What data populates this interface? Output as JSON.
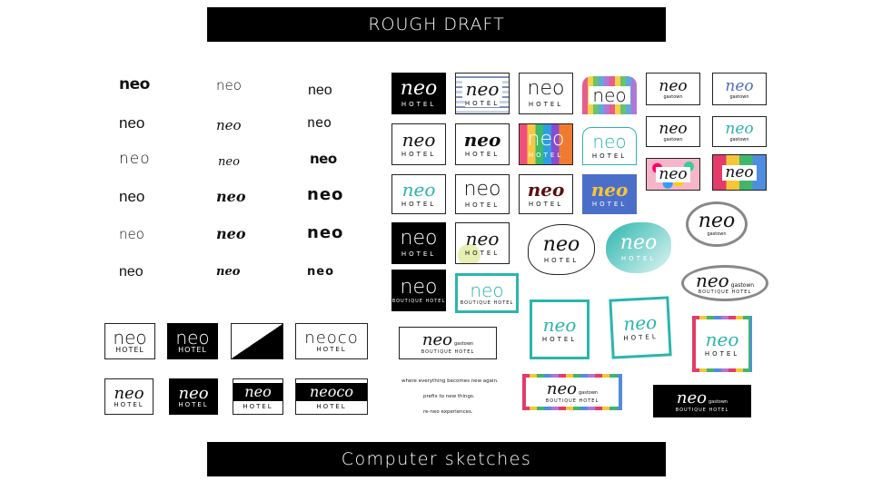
{
  "banners": {
    "top": "ROUGH DRAFT",
    "bottom": "Computer sketches"
  },
  "wordmark": "neo",
  "hotel": "HOTEL",
  "gastown": "gastown",
  "boutique": "BOUTIQUE HOTEL",
  "neoco": "neoco",
  "taglines": [
    "where everything becomes new again.",
    "prefix to new things.",
    "re-neo experiences."
  ]
}
